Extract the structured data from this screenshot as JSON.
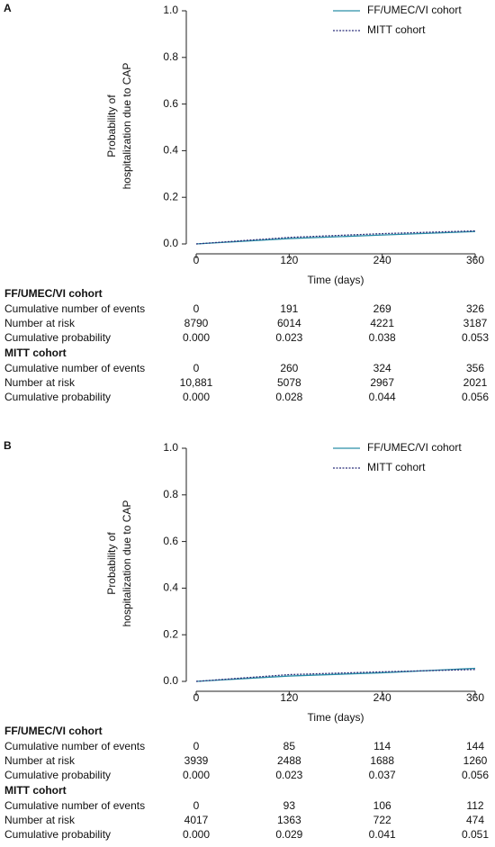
{
  "chart_data": [
    {
      "type": "line",
      "panel": "A",
      "ylabel": [
        "Probability of",
        "hospitalization due to CAP"
      ],
      "xlabel": "Time (days)",
      "x": [
        0,
        120,
        240,
        360
      ],
      "xlim": [
        0,
        360
      ],
      "xticks": [
        0,
        120,
        240,
        360
      ],
      "ylim": [
        0,
        1
      ],
      "yticks": [
        {
          "value": 0,
          "label": "0.0"
        },
        0.2,
        0.4,
        0.6,
        0.8,
        {
          "value": 1,
          "label": "1.0"
        }
      ],
      "legend": "upper right",
      "series": [
        {
          "name": "FF/UMEC/VI cohort",
          "color": "#2a8fa8",
          "style": "solid",
          "values": [
            0.0,
            0.023,
            0.038,
            0.053
          ]
        },
        {
          "name": "MITT cohort",
          "color": "#2b2f7a",
          "style": "dotted",
          "values": [
            0.0,
            0.028,
            0.044,
            0.056
          ]
        }
      ],
      "risk_table": [
        {
          "title": "FF/UMEC/VI cohort",
          "rows": [
            {
              "label": "Cumulative number of events",
              "values": [
                "0",
                "191",
                "269",
                "326"
              ]
            },
            {
              "label": "Number at risk",
              "values": [
                "8790",
                "6014",
                "4221",
                "3187"
              ]
            },
            {
              "label": "Cumulative probability",
              "values": [
                "0.000",
                "0.023",
                "0.038",
                "0.053"
              ]
            }
          ]
        },
        {
          "title": "MITT cohort",
          "rows": [
            {
              "label": "Cumulative number of events",
              "values": [
                "0",
                "260",
                "324",
                "356"
              ]
            },
            {
              "label": "Number at risk",
              "values": [
                "10,881",
                "5078",
                "2967",
                "2021"
              ]
            },
            {
              "label": "Cumulative probability",
              "values": [
                "0.000",
                "0.028",
                "0.044",
                "0.056"
              ]
            }
          ]
        }
      ]
    },
    {
      "type": "line",
      "panel": "B",
      "ylabel": [
        "Probability of",
        "hospitalization due to CAP"
      ],
      "xlabel": "Time (days)",
      "x": [
        0,
        120,
        240,
        360
      ],
      "xlim": [
        0,
        360
      ],
      "xticks": [
        0,
        120,
        240,
        360
      ],
      "ylim": [
        0,
        1
      ],
      "yticks": [
        {
          "value": 0,
          "label": "0.0"
        },
        0.2,
        0.4,
        0.6,
        0.8,
        {
          "value": 1,
          "label": "1.0"
        }
      ],
      "legend": "upper right",
      "series": [
        {
          "name": "FF/UMEC/VI cohort",
          "color": "#2a8fa8",
          "style": "solid",
          "values": [
            0.0,
            0.023,
            0.037,
            0.056
          ]
        },
        {
          "name": "MITT cohort",
          "color": "#2b2f7a",
          "style": "dotted",
          "values": [
            0.0,
            0.029,
            0.041,
            0.051
          ]
        }
      ],
      "risk_table": [
        {
          "title": "FF/UMEC/VI cohort",
          "rows": [
            {
              "label": "Cumulative number of events",
              "values": [
                "0",
                "85",
                "114",
                "144"
              ]
            },
            {
              "label": "Number at risk",
              "values": [
                "3939",
                "2488",
                "1688",
                "1260"
              ]
            },
            {
              "label": "Cumulative probability",
              "values": [
                "0.000",
                "0.023",
                "0.037",
                "0.056"
              ]
            }
          ]
        },
        {
          "title": "MITT cohort",
          "rows": [
            {
              "label": "Cumulative number of events",
              "values": [
                "0",
                "93",
                "106",
                "112"
              ]
            },
            {
              "label": "Number at risk",
              "values": [
                "4017",
                "1363",
                "722",
                "474"
              ]
            },
            {
              "label": "Cumulative probability",
              "values": [
                "0.000",
                "0.029",
                "0.041",
                "0.051"
              ]
            }
          ]
        }
      ]
    }
  ]
}
